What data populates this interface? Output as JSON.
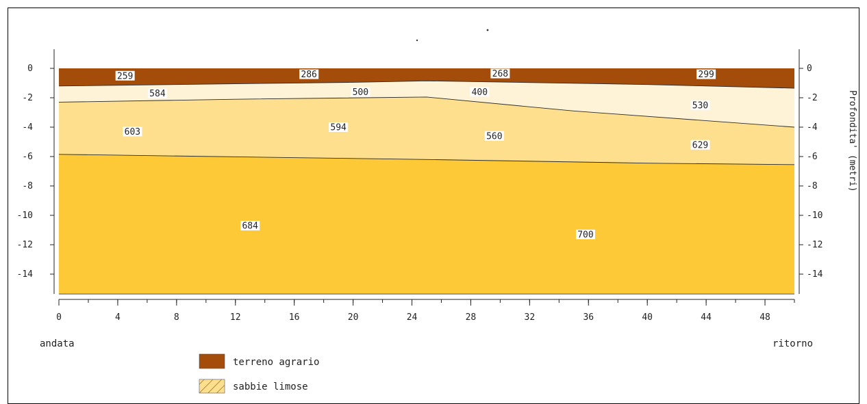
{
  "chart_data": {
    "type": "area",
    "title": "",
    "xlabel": "",
    "ylabel": "Profondita' (metri)",
    "xlim": [
      0,
      50
    ],
    "ylim": [
      -15.3,
      1.3
    ],
    "x_ticks": [
      0,
      4,
      8,
      12,
      16,
      20,
      24,
      28,
      32,
      36,
      40,
      44,
      48
    ],
    "y_ticks": [
      0,
      -2,
      -4,
      -6,
      -8,
      -10,
      -12,
      -14
    ],
    "x_minor_step": 2,
    "grid": false,
    "start_label": "andata",
    "end_label": "ritorno",
    "layers": [
      {
        "name": "terreno agrario",
        "color": "#a44d0a",
        "top": [
          [
            0,
            0
          ],
          [
            50,
            0
          ]
        ],
        "bottom": [
          [
            0,
            -1.2
          ],
          [
            20,
            -0.95
          ],
          [
            25,
            -0.85
          ],
          [
            40,
            -1.1
          ],
          [
            50,
            -1.35
          ]
        ]
      },
      {
        "name": "",
        "color": "#fef3d6",
        "top": [
          [
            0,
            -1.2
          ],
          [
            20,
            -0.95
          ],
          [
            25,
            -0.85
          ],
          [
            40,
            -1.1
          ],
          [
            50,
            -1.35
          ]
        ],
        "bottom": [
          [
            0,
            -2.3
          ],
          [
            12,
            -2.1
          ],
          [
            25,
            -1.95
          ],
          [
            35,
            -2.9
          ],
          [
            50,
            -4.0
          ]
        ]
      },
      {
        "name": "sabbie limose",
        "color": "#fedf8e",
        "top": [
          [
            0,
            -2.3
          ],
          [
            12,
            -2.1
          ],
          [
            25,
            -1.95
          ],
          [
            35,
            -2.9
          ],
          [
            50,
            -4.0
          ]
        ],
        "bottom": [
          [
            0,
            -5.85
          ],
          [
            25,
            -6.2
          ],
          [
            40,
            -6.45
          ],
          [
            50,
            -6.55
          ]
        ]
      },
      {
        "name": "",
        "color": "#fdc937",
        "top": [
          [
            0,
            -5.85
          ],
          [
            25,
            -6.2
          ],
          [
            40,
            -6.45
          ],
          [
            50,
            -6.55
          ]
        ],
        "bottom": [
          [
            0,
            -15.3
          ],
          [
            50,
            -15.3
          ]
        ]
      }
    ],
    "value_labels": [
      {
        "x": 4.5,
        "y": -0.5,
        "text": "259"
      },
      {
        "x": 17,
        "y": -0.4,
        "text": "286"
      },
      {
        "x": 30,
        "y": -0.35,
        "text": "268"
      },
      {
        "x": 44,
        "y": -0.4,
        "text": "299"
      },
      {
        "x": 6.7,
        "y": -1.7,
        "text": "584"
      },
      {
        "x": 20.5,
        "y": -1.6,
        "text": "500"
      },
      {
        "x": 28.6,
        "y": -1.6,
        "text": "400"
      },
      {
        "x": 43.6,
        "y": -2.5,
        "text": "530"
      },
      {
        "x": 5,
        "y": -4.3,
        "text": "603"
      },
      {
        "x": 19,
        "y": -4.0,
        "text": "594"
      },
      {
        "x": 29.6,
        "y": -4.6,
        "text": "560"
      },
      {
        "x": 43.6,
        "y": -5.2,
        "text": "629"
      },
      {
        "x": 13,
        "y": -10.7,
        "text": "684"
      },
      {
        "x": 35.8,
        "y": -11.3,
        "text": "700"
      }
    ]
  },
  "legend": [
    {
      "label": "terreno agrario",
      "color": "#a44d0a",
      "pattern": "solid",
      "icon": "brown-swatch"
    },
    {
      "label": "sabbie limose",
      "color": "#fedf8e",
      "pattern": "hatched",
      "icon": "hatched-swatch"
    }
  ]
}
